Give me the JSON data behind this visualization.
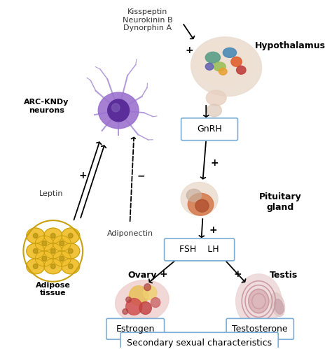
{
  "background_color": "#ffffff",
  "fig_width": 4.74,
  "fig_height": 4.99,
  "dpi": 100,
  "labels": {
    "arc_kndy": "ARC-KNDy\nneurons",
    "hypothalamus": "Hypothalamus",
    "pituitary": "Pituitary\ngland",
    "adipose": "Adipose\ntissue",
    "leptin": "Leptin",
    "adiponectin": "Adiponectin",
    "kisspeptin": "Kisspeptin\nNeurokinin B\nDynorphin A",
    "gnrh_box": "GnRH",
    "fsh_lh_box": "FSH    LH",
    "ovary_label": "Ovary",
    "testis_label": "Testis",
    "estrogen_box": "Estrogen",
    "testosterone_box": "Testosterone",
    "secondary_box": "Secondary sexual characteristics"
  },
  "colors": {
    "box_edge": "#7aaed6",
    "box_face": "#ffffff",
    "neuron_body": "#9b72cf",
    "neuron_nucleus": "#5a2d9a",
    "neuron_dendrite": "#b39ddb",
    "adipose_fill": "#f0c030",
    "adipose_outline": "#c8a010",
    "hypo_base": "#e8d0c0",
    "hypo_stalk": "#e0c0b0",
    "pit_outer": "#e8c8b8",
    "pit_inner": "#d4805a",
    "pit_core": "#b06030",
    "ovary_outer": "#f0c8c8",
    "ovary_inner": "#e08080",
    "ovary_fol1": "#ffd700",
    "ovary_fol2": "#d06060",
    "testis_outer": "#e8d0d0",
    "testis_inner": "#c08090",
    "testis_ring": "#b07080"
  }
}
